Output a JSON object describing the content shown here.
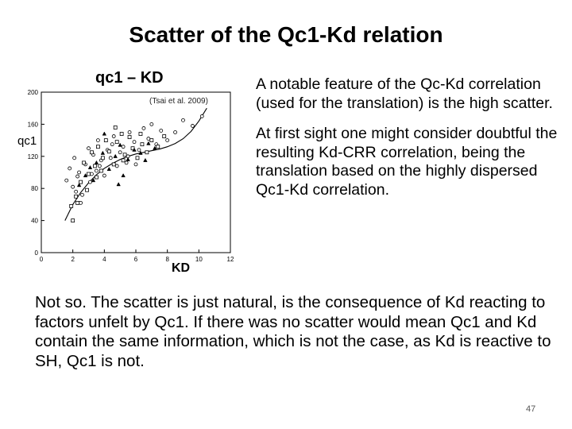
{
  "slide": {
    "title": "Scatter of the Qc1-Kd relation",
    "page_number": "47",
    "paragraphs_right": [
      "A notable feature of the Qc-Kd correlation (used for the translation) is the high scatter.",
      "At  first sight one might consider doubtful the resulting Kd-CRR correlation, being the translation based on the highly dispersed Qc1-Kd correlation."
    ],
    "paragraph_bottom": "Not so. The scatter is just natural, is the consequence of Kd reacting to factors unfelt by Qc1. If there was no scatter would mean Qc1 and Kd contain the same information, which is not the case, as Kd is reactive to SH, Qc1 is not."
  },
  "chart_data": {
    "type": "scatter",
    "title": "qc1 – KD",
    "annotation": "(Tsai et al. 2009)",
    "xlabel": "KD",
    "ylabel": "qc1",
    "xlim": [
      0,
      12
    ],
    "ylim": [
      0,
      200
    ],
    "x_ticks": [
      "0",
      "2",
      "4",
      "6",
      "8",
      "10",
      "12"
    ],
    "y_ticks": [
      "0",
      "40",
      "80",
      "120",
      "160",
      "200"
    ],
    "grid": false,
    "series": [
      {
        "marker": "circle",
        "x": [
          1.6,
          1.8,
          2.0,
          2.1,
          2.3,
          2.4,
          2.6,
          2.8,
          3.0,
          3.1,
          3.3,
          3.5,
          3.6,
          3.8,
          4.0,
          4.2,
          4.4,
          4.6,
          4.8,
          5.0,
          5.2,
          5.4,
          5.6,
          5.9,
          6.2,
          6.5,
          6.8,
          7.0,
          7.3,
          7.6,
          8.0,
          8.5,
          9.0,
          9.6,
          10.2,
          2.5,
          3.2,
          4.5,
          5.5,
          6.0,
          2.2,
          3.7
        ],
        "y": [
          90,
          105,
          82,
          118,
          95,
          100,
          72,
          110,
          130,
          88,
          122,
          102,
          140,
          115,
          96,
          128,
          118,
          145,
          108,
          125,
          132,
          112,
          150,
          138,
          128,
          155,
          142,
          160,
          135,
          152,
          140,
          150,
          165,
          158,
          170,
          62,
          98,
          135,
          120,
          110,
          76,
          108
        ]
      },
      {
        "marker": "square",
        "x": [
          1.9,
          2.2,
          2.5,
          2.7,
          3.0,
          3.2,
          3.4,
          3.6,
          3.9,
          4.1,
          4.3,
          4.6,
          4.8,
          5.1,
          5.3,
          5.6,
          5.8,
          6.1,
          6.4,
          6.7,
          7.0,
          7.4,
          7.8,
          2.0,
          2.9,
          3.8,
          4.7,
          5.2,
          6.3,
          2.3,
          3.5
        ],
        "y": [
          58,
          70,
          88,
          112,
          98,
          125,
          108,
          132,
          118,
          140,
          126,
          110,
          138,
          148,
          122,
          144,
          130,
          118,
          135,
          125,
          140,
          132,
          145,
          40,
          78,
          102,
          156,
          115,
          148,
          62,
          94
        ]
      },
      {
        "marker": "triangle",
        "x": [
          2.4,
          2.8,
          3.1,
          3.5,
          3.9,
          4.3,
          4.7,
          5.0,
          5.5,
          5.9,
          6.3,
          6.8,
          7.2,
          4.0,
          5.2,
          6.6,
          3.3,
          4.9
        ],
        "y": [
          84,
          96,
          106,
          112,
          124,
          104,
          120,
          134,
          116,
          128,
          124,
          136,
          130,
          148,
          96,
          115,
          90,
          85
        ]
      }
    ],
    "trend_line": {
      "x": [
        1.5,
        2.0,
        2.5,
        3.0,
        3.5,
        4.0,
        4.5,
        5.0,
        5.5,
        6.0,
        6.5,
        7.0,
        7.5,
        8.0,
        8.5,
        9.0,
        9.5,
        10.0,
        10.5
      ],
      "y": [
        40,
        60,
        75,
        87,
        97,
        105,
        111,
        116,
        120,
        123,
        125,
        127,
        129,
        132,
        136,
        142,
        151,
        164,
        180
      ]
    }
  }
}
